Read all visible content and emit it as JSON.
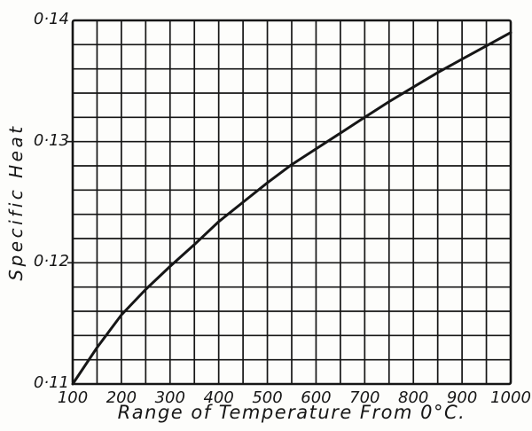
{
  "colors": {
    "ink": "#161616",
    "paper": "#fdfdfb"
  },
  "chart_data": {
    "type": "line",
    "title": "",
    "xlabel": "Range of Temperature From 0°C.",
    "ylabel": "Specific Heat",
    "xlim": [
      100,
      1000
    ],
    "ylim": [
      0.11,
      0.14
    ],
    "x_grid_step": 50,
    "y_grid_step": 0.002,
    "grid": "on",
    "legend": "none",
    "x": [
      100,
      150,
      200,
      250,
      300,
      350,
      400,
      450,
      500,
      550,
      600,
      650,
      700,
      750,
      800,
      850,
      900,
      950,
      1000
    ],
    "y": [
      0.11,
      0.113,
      0.1157,
      0.1178,
      0.1197,
      0.1215,
      0.1234,
      0.125,
      0.1266,
      0.1281,
      0.1294,
      0.1307,
      0.132,
      0.1333,
      0.1345,
      0.1357,
      0.1368,
      0.1379,
      0.139
    ],
    "x_tick_values": [
      100,
      200,
      300,
      400,
      500,
      600,
      700,
      800,
      900,
      1000
    ],
    "x_tick_labels": [
      "100",
      "200",
      "300",
      "400",
      "500",
      "600",
      "700",
      "800",
      "900",
      "1000"
    ],
    "y_tick_values": [
      0.11,
      0.12,
      0.13,
      0.14
    ],
    "y_tick_labels": [
      "0·11",
      "0·12",
      "0·13",
      "0·14"
    ],
    "y_ticks_with_marks": [
      0.12,
      0.13
    ]
  }
}
